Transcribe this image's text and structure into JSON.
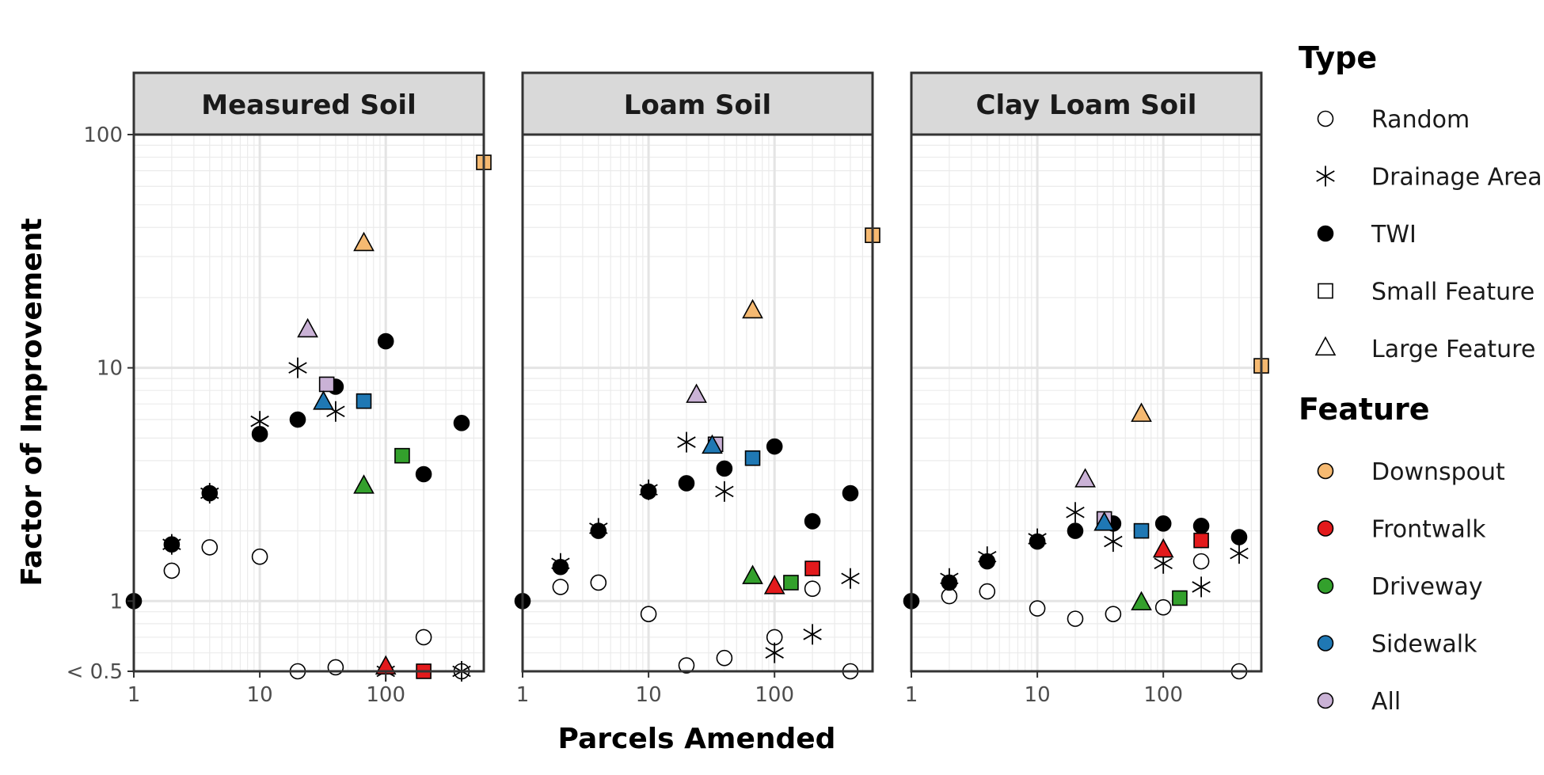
{
  "chart_data": {
    "type": "scatter",
    "xlabel": "Parcels Amended",
    "ylabel": "Factor of Improvement",
    "x_scale": "log",
    "y_scale": "log",
    "xlim": [
      1,
      600
    ],
    "ylim": [
      0.5,
      100
    ],
    "x_ticks": [
      {
        "value": 1,
        "label": "1"
      },
      {
        "value": 10,
        "label": "10"
      },
      {
        "value": 100,
        "label": "100"
      }
    ],
    "y_ticks": [
      {
        "value": 0.5,
        "label": "< 0.5"
      },
      {
        "value": 1,
        "label": "1"
      },
      {
        "value": 10,
        "label": "10"
      },
      {
        "value": 100,
        "label": "100"
      }
    ],
    "grid": true,
    "legend_position": "right",
    "legend": {
      "type_title": "Type",
      "types": [
        {
          "key": "random",
          "label": "Random",
          "shape": "circle-open"
        },
        {
          "key": "drainage",
          "label": "Drainage Area",
          "shape": "asterisk"
        },
        {
          "key": "twi",
          "label": "TWI",
          "shape": "circle-filled"
        },
        {
          "key": "small",
          "label": "Small Feature",
          "shape": "square"
        },
        {
          "key": "large",
          "label": "Large Feature",
          "shape": "triangle"
        }
      ],
      "feature_title": "Feature",
      "features": [
        {
          "key": "downspout",
          "label": "Downspout",
          "color": "#F5B971"
        },
        {
          "key": "frontwalk",
          "label": "Frontwalk",
          "color": "#E31A1C"
        },
        {
          "key": "driveway",
          "label": "Driveway",
          "color": "#33A02C"
        },
        {
          "key": "sidewalk",
          "label": "Sidewalk",
          "color": "#1F78B4"
        },
        {
          "key": "all",
          "label": "All",
          "color": "#CAB2D6"
        }
      ]
    },
    "panels": [
      {
        "title": "Measured Soil",
        "points": [
          {
            "type": "twi",
            "x": 1,
            "y": 1
          },
          {
            "type": "random",
            "x": 2,
            "y": 1.35
          },
          {
            "type": "random",
            "x": 4,
            "y": 1.7
          },
          {
            "type": "random",
            "x": 10,
            "y": 1.55
          },
          {
            "type": "random",
            "x": 20,
            "y": 0.5
          },
          {
            "type": "random",
            "x": 40,
            "y": 0.52
          },
          {
            "type": "random",
            "x": 200,
            "y": 0.7
          },
          {
            "type": "random",
            "x": 400,
            "y": 0.5
          },
          {
            "type": "drainage",
            "x": 2,
            "y": 1.75
          },
          {
            "type": "drainage",
            "x": 4,
            "y": 2.9
          },
          {
            "type": "drainage",
            "x": 10,
            "y": 5.9
          },
          {
            "type": "drainage",
            "x": 20,
            "y": 10
          },
          {
            "type": "drainage",
            "x": 40,
            "y": 6.5
          },
          {
            "type": "drainage",
            "x": 100,
            "y": 0.5
          },
          {
            "type": "drainage",
            "x": 400,
            "y": 0.5
          },
          {
            "type": "twi",
            "x": 2,
            "y": 1.75
          },
          {
            "type": "twi",
            "x": 4,
            "y": 2.9
          },
          {
            "type": "twi",
            "x": 10,
            "y": 5.2
          },
          {
            "type": "twi",
            "x": 20,
            "y": 6
          },
          {
            "type": "twi",
            "x": 40,
            "y": 8.3
          },
          {
            "type": "twi",
            "x": 100,
            "y": 13
          },
          {
            "type": "twi",
            "x": 200,
            "y": 3.5
          },
          {
            "type": "twi",
            "x": 400,
            "y": 5.8
          },
          {
            "type": "small",
            "feature": "downspout",
            "x": 600,
            "y": 76
          },
          {
            "type": "small",
            "feature": "all",
            "x": 34,
            "y": 8.5
          },
          {
            "type": "small",
            "feature": "sidewalk",
            "x": 67,
            "y": 7.2
          },
          {
            "type": "small",
            "feature": "driveway",
            "x": 135,
            "y": 4.2
          },
          {
            "type": "small",
            "feature": "frontwalk",
            "x": 200,
            "y": 0.5
          },
          {
            "type": "large",
            "feature": "downspout",
            "x": 67,
            "y": 34
          },
          {
            "type": "large",
            "feature": "all",
            "x": 24,
            "y": 14.5
          },
          {
            "type": "large",
            "feature": "sidewalk",
            "x": 32,
            "y": 7.1
          },
          {
            "type": "large",
            "feature": "driveway",
            "x": 67,
            "y": 3.1
          },
          {
            "type": "large",
            "feature": "frontwalk",
            "x": 100,
            "y": 0.52
          }
        ]
      },
      {
        "title": "Loam Soil",
        "points": [
          {
            "type": "twi",
            "x": 1,
            "y": 1
          },
          {
            "type": "random",
            "x": 2,
            "y": 1.15
          },
          {
            "type": "random",
            "x": 4,
            "y": 1.2
          },
          {
            "type": "random",
            "x": 10,
            "y": 0.88
          },
          {
            "type": "random",
            "x": 20,
            "y": 0.53
          },
          {
            "type": "random",
            "x": 40,
            "y": 0.57
          },
          {
            "type": "random",
            "x": 100,
            "y": 0.7
          },
          {
            "type": "random",
            "x": 200,
            "y": 1.13
          },
          {
            "type": "random",
            "x": 400,
            "y": 0.5
          },
          {
            "type": "drainage",
            "x": 2,
            "y": 1.45
          },
          {
            "type": "drainage",
            "x": 4,
            "y": 2.05
          },
          {
            "type": "drainage",
            "x": 10,
            "y": 3
          },
          {
            "type": "drainage",
            "x": 20,
            "y": 4.8
          },
          {
            "type": "drainage",
            "x": 40,
            "y": 2.95
          },
          {
            "type": "drainage",
            "x": 100,
            "y": 0.6
          },
          {
            "type": "drainage",
            "x": 200,
            "y": 0.72
          },
          {
            "type": "drainage",
            "x": 400,
            "y": 1.25
          },
          {
            "type": "twi",
            "x": 2,
            "y": 1.4
          },
          {
            "type": "twi",
            "x": 4,
            "y": 2
          },
          {
            "type": "twi",
            "x": 10,
            "y": 2.95
          },
          {
            "type": "twi",
            "x": 20,
            "y": 3.2
          },
          {
            "type": "twi",
            "x": 40,
            "y": 3.7
          },
          {
            "type": "twi",
            "x": 100,
            "y": 4.6
          },
          {
            "type": "twi",
            "x": 200,
            "y": 2.2
          },
          {
            "type": "twi",
            "x": 400,
            "y": 2.9
          },
          {
            "type": "small",
            "feature": "downspout",
            "x": 600,
            "y": 37
          },
          {
            "type": "small",
            "feature": "all",
            "x": 34,
            "y": 4.7
          },
          {
            "type": "small",
            "feature": "sidewalk",
            "x": 67,
            "y": 4.1
          },
          {
            "type": "small",
            "feature": "driveway",
            "x": 135,
            "y": 1.2
          },
          {
            "type": "small",
            "feature": "frontwalk",
            "x": 200,
            "y": 1.38
          },
          {
            "type": "large",
            "feature": "downspout",
            "x": 67,
            "y": 17.5
          },
          {
            "type": "large",
            "feature": "all",
            "x": 24,
            "y": 7.6
          },
          {
            "type": "large",
            "feature": "sidewalk",
            "x": 32,
            "y": 4.6
          },
          {
            "type": "large",
            "feature": "driveway",
            "x": 67,
            "y": 1.27
          },
          {
            "type": "large",
            "feature": "frontwalk",
            "x": 100,
            "y": 1.15
          }
        ]
      },
      {
        "title": "Clay Loam Soil",
        "points": [
          {
            "type": "twi",
            "x": 1,
            "y": 1
          },
          {
            "type": "random",
            "x": 2,
            "y": 1.05
          },
          {
            "type": "random",
            "x": 4,
            "y": 1.1
          },
          {
            "type": "random",
            "x": 10,
            "y": 0.93
          },
          {
            "type": "random",
            "x": 20,
            "y": 0.84
          },
          {
            "type": "random",
            "x": 40,
            "y": 0.88
          },
          {
            "type": "random",
            "x": 100,
            "y": 0.94
          },
          {
            "type": "random",
            "x": 200,
            "y": 1.48
          },
          {
            "type": "random",
            "x": 400,
            "y": 0.5
          },
          {
            "type": "drainage",
            "x": 2,
            "y": 1.25
          },
          {
            "type": "drainage",
            "x": 4,
            "y": 1.55
          },
          {
            "type": "drainage",
            "x": 10,
            "y": 1.85
          },
          {
            "type": "drainage",
            "x": 20,
            "y": 2.4
          },
          {
            "type": "drainage",
            "x": 40,
            "y": 1.8
          },
          {
            "type": "drainage",
            "x": 100,
            "y": 1.45
          },
          {
            "type": "drainage",
            "x": 200,
            "y": 1.15
          },
          {
            "type": "drainage",
            "x": 400,
            "y": 1.6
          },
          {
            "type": "twi",
            "x": 2,
            "y": 1.2
          },
          {
            "type": "twi",
            "x": 4,
            "y": 1.48
          },
          {
            "type": "twi",
            "x": 10,
            "y": 1.8
          },
          {
            "type": "twi",
            "x": 20,
            "y": 2
          },
          {
            "type": "twi",
            "x": 40,
            "y": 2.15
          },
          {
            "type": "twi",
            "x": 100,
            "y": 2.15
          },
          {
            "type": "twi",
            "x": 200,
            "y": 2.1
          },
          {
            "type": "twi",
            "x": 400,
            "y": 1.88
          },
          {
            "type": "small",
            "feature": "downspout",
            "x": 600,
            "y": 10.2
          },
          {
            "type": "small",
            "feature": "all",
            "x": 34,
            "y": 2.25
          },
          {
            "type": "small",
            "feature": "sidewalk",
            "x": 67,
            "y": 2
          },
          {
            "type": "small",
            "feature": "driveway",
            "x": 135,
            "y": 1.03
          },
          {
            "type": "small",
            "feature": "frontwalk",
            "x": 200,
            "y": 1.82
          },
          {
            "type": "large",
            "feature": "downspout",
            "x": 67,
            "y": 6.3
          },
          {
            "type": "large",
            "feature": "all",
            "x": 24,
            "y": 3.3
          },
          {
            "type": "large",
            "feature": "sidewalk",
            "x": 34,
            "y": 2.15
          },
          {
            "type": "large",
            "feature": "driveway",
            "x": 67,
            "y": 0.98
          },
          {
            "type": "large",
            "feature": "frontwalk",
            "x": 100,
            "y": 1.65
          }
        ]
      }
    ]
  }
}
